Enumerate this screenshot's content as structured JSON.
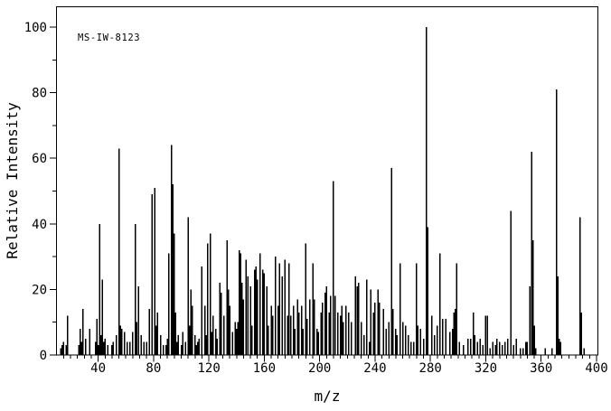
{
  "annotation": "MS-IW-8123",
  "axes": {
    "x": {
      "label": "m/z",
      "min": 10,
      "max": 401,
      "major_ticks": [
        40,
        80,
        120,
        160,
        200,
        240,
        280,
        320,
        360,
        400
      ],
      "minor_tick_step": 5
    },
    "y": {
      "label": "Relative Intensity",
      "min": 0,
      "max": 106,
      "major_ticks": [
        0,
        20,
        40,
        60,
        80,
        100
      ],
      "minor_tick_step": 10
    }
  },
  "chart_data": {
    "type": "bar",
    "subtype": "mass-spectrum",
    "title": "MS-IW-8123",
    "xlabel": "m/z",
    "ylabel": "Relative Intensity",
    "xlim": [
      10,
      401
    ],
    "ylim": [
      0,
      106
    ],
    "grid": false,
    "legend": false,
    "bar_color": "#000000",
    "peaks": [
      [
        13,
        2
      ],
      [
        14,
        3
      ],
      [
        15,
        4
      ],
      [
        17,
        3
      ],
      [
        18,
        12
      ],
      [
        26,
        3
      ],
      [
        27,
        8
      ],
      [
        28,
        4
      ],
      [
        29,
        14
      ],
      [
        31,
        5
      ],
      [
        34,
        8
      ],
      [
        38,
        4
      ],
      [
        39,
        11
      ],
      [
        40,
        3
      ],
      [
        41,
        40
      ],
      [
        42,
        6
      ],
      [
        43,
        23
      ],
      [
        44,
        4
      ],
      [
        45,
        5
      ],
      [
        47,
        3
      ],
      [
        50,
        3
      ],
      [
        51,
        4
      ],
      [
        53,
        6
      ],
      [
        55,
        63
      ],
      [
        56,
        9
      ],
      [
        57,
        8
      ],
      [
        59,
        7
      ],
      [
        61,
        4
      ],
      [
        63,
        4
      ],
      [
        65,
        7
      ],
      [
        67,
        40
      ],
      [
        68,
        10
      ],
      [
        69,
        21
      ],
      [
        71,
        6
      ],
      [
        73,
        4
      ],
      [
        75,
        4
      ],
      [
        77,
        14
      ],
      [
        79,
        49
      ],
      [
        81,
        51
      ],
      [
        82,
        9
      ],
      [
        83,
        13
      ],
      [
        85,
        6
      ],
      [
        87,
        3
      ],
      [
        89,
        3
      ],
      [
        90,
        5
      ],
      [
        91,
        31
      ],
      [
        93,
        64
      ],
      [
        94,
        52
      ],
      [
        95,
        37
      ],
      [
        96,
        13
      ],
      [
        97,
        4
      ],
      [
        98,
        6
      ],
      [
        100,
        3
      ],
      [
        101,
        7
      ],
      [
        103,
        4
      ],
      [
        105,
        42
      ],
      [
        106,
        9
      ],
      [
        107,
        20
      ],
      [
        108,
        15
      ],
      [
        110,
        6
      ],
      [
        111,
        3
      ],
      [
        112,
        4
      ],
      [
        113,
        5
      ],
      [
        115,
        27
      ],
      [
        117,
        15
      ],
      [
        118,
        6
      ],
      [
        119,
        34
      ],
      [
        121,
        37
      ],
      [
        122,
        7
      ],
      [
        123,
        12
      ],
      [
        125,
        8
      ],
      [
        126,
        5
      ],
      [
        128,
        22
      ],
      [
        129,
        19
      ],
      [
        131,
        12
      ],
      [
        133,
        35
      ],
      [
        134,
        20
      ],
      [
        135,
        15
      ],
      [
        137,
        7
      ],
      [
        139,
        10
      ],
      [
        140,
        8
      ],
      [
        141,
        10
      ],
      [
        142,
        32
      ],
      [
        143,
        31
      ],
      [
        144,
        22
      ],
      [
        145,
        17
      ],
      [
        147,
        29
      ],
      [
        148,
        24
      ],
      [
        150,
        21
      ],
      [
        151,
        9
      ],
      [
        153,
        26
      ],
      [
        154,
        27
      ],
      [
        155,
        23
      ],
      [
        157,
        31
      ],
      [
        159,
        26
      ],
      [
        160,
        25
      ],
      [
        162,
        21
      ],
      [
        163,
        9
      ],
      [
        165,
        15
      ],
      [
        166,
        12
      ],
      [
        168,
        30
      ],
      [
        170,
        15
      ],
      [
        171,
        28
      ],
      [
        173,
        24
      ],
      [
        175,
        29
      ],
      [
        177,
        12
      ],
      [
        178,
        28
      ],
      [
        179,
        12
      ],
      [
        181,
        15
      ],
      [
        182,
        8
      ],
      [
        184,
        17
      ],
      [
        185,
        13
      ],
      [
        187,
        15
      ],
      [
        188,
        8
      ],
      [
        190,
        34
      ],
      [
        191,
        11
      ],
      [
        193,
        17
      ],
      [
        195,
        28
      ],
      [
        196,
        17
      ],
      [
        198,
        8
      ],
      [
        199,
        7
      ],
      [
        201,
        13
      ],
      [
        202,
        16
      ],
      [
        204,
        19
      ],
      [
        205,
        21
      ],
      [
        207,
        13
      ],
      [
        208,
        18
      ],
      [
        210,
        53
      ],
      [
        211,
        18
      ],
      [
        213,
        13
      ],
      [
        215,
        12
      ],
      [
        216,
        15
      ],
      [
        217,
        10
      ],
      [
        219,
        15
      ],
      [
        221,
        13
      ],
      [
        223,
        10
      ],
      [
        226,
        24
      ],
      [
        227,
        21
      ],
      [
        228,
        22
      ],
      [
        230,
        10
      ],
      [
        232,
        6
      ],
      [
        234,
        23
      ],
      [
        236,
        4
      ],
      [
        237,
        20
      ],
      [
        239,
        13
      ],
      [
        240,
        16
      ],
      [
        242,
        20
      ],
      [
        243,
        16
      ],
      [
        246,
        14
      ],
      [
        248,
        8
      ],
      [
        250,
        10
      ],
      [
        252,
        57
      ],
      [
        253,
        14
      ],
      [
        255,
        8
      ],
      [
        256,
        6
      ],
      [
        258,
        28
      ],
      [
        260,
        10
      ],
      [
        262,
        9
      ],
      [
        264,
        6
      ],
      [
        266,
        4
      ],
      [
        268,
        4
      ],
      [
        270,
        28
      ],
      [
        271,
        9
      ],
      [
        273,
        8
      ],
      [
        275,
        5
      ],
      [
        277,
        100
      ],
      [
        278,
        39
      ],
      [
        281,
        12
      ],
      [
        283,
        6
      ],
      [
        285,
        9
      ],
      [
        287,
        31
      ],
      [
        289,
        11
      ],
      [
        291,
        11
      ],
      [
        294,
        7
      ],
      [
        296,
        8
      ],
      [
        297,
        13
      ],
      [
        298,
        14
      ],
      [
        299,
        28
      ],
      [
        301,
        4
      ],
      [
        304,
        3
      ],
      [
        307,
        5
      ],
      [
        309,
        5
      ],
      [
        311,
        13
      ],
      [
        312,
        6
      ],
      [
        314,
        4
      ],
      [
        316,
        5
      ],
      [
        318,
        3
      ],
      [
        320,
        12
      ],
      [
        321,
        12
      ],
      [
        323,
        2
      ],
      [
        325,
        4
      ],
      [
        327,
        3
      ],
      [
        328,
        5
      ],
      [
        330,
        4
      ],
      [
        332,
        3
      ],
      [
        334,
        4
      ],
      [
        336,
        5
      ],
      [
        338,
        44
      ],
      [
        340,
        3
      ],
      [
        342,
        5
      ],
      [
        345,
        2
      ],
      [
        347,
        2
      ],
      [
        349,
        4
      ],
      [
        350,
        4
      ],
      [
        352,
        21
      ],
      [
        353,
        62
      ],
      [
        354,
        35
      ],
      [
        355,
        9
      ],
      [
        356,
        2
      ],
      [
        363,
        2
      ],
      [
        368,
        2
      ],
      [
        371,
        81
      ],
      [
        372,
        24
      ],
      [
        373,
        5
      ],
      [
        374,
        4
      ],
      [
        388,
        42
      ],
      [
        389,
        13
      ],
      [
        391,
        2
      ]
    ]
  }
}
